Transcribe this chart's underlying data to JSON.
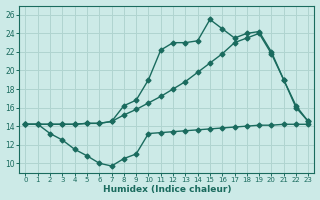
{
  "xlabel": "Humidex (Indice chaleur)",
  "xlim": [
    -0.5,
    23.5
  ],
  "ylim": [
    9,
    27
  ],
  "yticks": [
    10,
    12,
    14,
    16,
    18,
    20,
    22,
    24,
    26
  ],
  "xticks": [
    0,
    1,
    2,
    3,
    4,
    5,
    6,
    7,
    8,
    9,
    10,
    11,
    12,
    13,
    14,
    15,
    16,
    17,
    18,
    19,
    20,
    21,
    22,
    23
  ],
  "bg_color": "#cceae7",
  "grid_color": "#b0d4d0",
  "line_color": "#1a6b5e",
  "line1_x": [
    0,
    1,
    2,
    3,
    4,
    5,
    6,
    7,
    8,
    9,
    10,
    11,
    12,
    13,
    14,
    15,
    16,
    17,
    18,
    19,
    20,
    21,
    22,
    23
  ],
  "line1_y": [
    14.2,
    14.2,
    13.2,
    12.5,
    11.5,
    10.8,
    10.0,
    9.7,
    10.5,
    11.0,
    13.2,
    13.3,
    13.4,
    13.5,
    13.6,
    13.7,
    13.8,
    13.9,
    14.0,
    14.1,
    14.1,
    14.2,
    14.2,
    14.2
  ],
  "line2_x": [
    0,
    1,
    2,
    3,
    4,
    5,
    6,
    7,
    8,
    9,
    10,
    11,
    12,
    13,
    14,
    15,
    16,
    17,
    18,
    19,
    20,
    21,
    22,
    23
  ],
  "line2_y": [
    14.2,
    14.2,
    14.2,
    14.2,
    14.2,
    14.3,
    14.3,
    14.5,
    15.2,
    15.8,
    16.5,
    17.2,
    18.0,
    18.8,
    19.8,
    20.8,
    21.8,
    23.0,
    23.5,
    24.0,
    21.8,
    19.0,
    16.0,
    14.5
  ],
  "line3_x": [
    0,
    1,
    2,
    3,
    4,
    5,
    6,
    7,
    8,
    9,
    10,
    11,
    12,
    13,
    14,
    15,
    16,
    17,
    18,
    19,
    20,
    21,
    22,
    23
  ],
  "line3_y": [
    14.2,
    14.2,
    14.2,
    14.2,
    14.2,
    14.3,
    14.3,
    14.5,
    16.2,
    16.8,
    19.0,
    22.2,
    23.0,
    23.0,
    23.2,
    25.5,
    24.5,
    23.5,
    24.0,
    24.2,
    22.0,
    19.0,
    16.2,
    14.5
  ],
  "marker_size": 2.5,
  "line_width": 1.0
}
